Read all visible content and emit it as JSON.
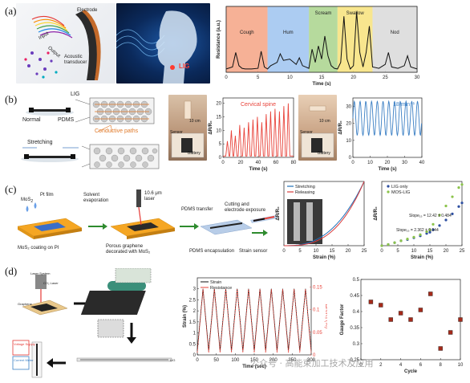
{
  "panels": {
    "a": {
      "label": "(a)",
      "device_labels": {
        "electrode": "Electrode",
        "input": "Input",
        "output": "Output",
        "transducer": "Acoustic transducer"
      },
      "lig_label": "LIG"
    },
    "b": {
      "label": "(b)",
      "labels": {
        "lig": "LIG",
        "normal": "Normal",
        "pdms": "PDMS",
        "conductive_paths": "Conductive paths",
        "stretching": "Stretching"
      },
      "photo1": {
        "scale": "10 cm",
        "sensor": "Sensor",
        "battery": "Battery"
      },
      "photo2": {
        "scale": "10 cm",
        "sensor": "Sensor",
        "battery": "Battery"
      }
    },
    "c": {
      "label": "(c)",
      "steps": {
        "mos2": "MoS",
        "pt_film": "Pt film",
        "solvent": "Solvent evaporation",
        "laser": "10.6 μm laser",
        "pdms_transfer": "PDMS transfer",
        "cutting": "Cutting and electrode exposure",
        "cap1": "MoS₂ coating on PI",
        "cap2": "Porous graphene decorated with MoS₂",
        "cap3": "PDMS encapsulation",
        "cap4": "Strain sensor"
      }
    },
    "d": {
      "label": "(d)",
      "labels": {
        "laser_system": "Laser System",
        "co2_laser": "CO₂ Laser",
        "graphene": "Graphene",
        "voltage_supply": "Voltage Supply",
        "current_meter": "Current Meter",
        "lig": "LIG"
      }
    }
  },
  "watermark": "公众号 · 高能束加工技术及应用",
  "chart_data": [
    {
      "id": "a-resistance",
      "type": "line",
      "ylabel": "Resistance (a.u.)",
      "xlabel": "Time (s)",
      "xlim": [
        0,
        30
      ],
      "xticks": [
        0,
        5,
        10,
        15,
        20,
        25,
        30
      ],
      "regions": [
        {
          "name": "Cough",
          "from": 0,
          "to": 6.5,
          "color": "#f4a384"
        },
        {
          "name": "Hum",
          "from": 6.5,
          "to": 13,
          "color": "#9ec3f0"
        },
        {
          "name": "Scream",
          "from": 13,
          "to": 17.5,
          "color": "#a9d38c"
        },
        {
          "name": "Swallow",
          "from": 17.5,
          "to": 23,
          "color": "#f7e27a"
        },
        {
          "name": "Nod",
          "from": 23,
          "to": 30,
          "color": "#d9d9d9"
        }
      ],
      "series": [
        {
          "values_x": [
            0,
            1,
            1.5,
            2,
            2.5,
            3,
            4,
            5,
            5.5,
            6,
            6.5,
            7,
            8,
            8.5,
            9,
            10,
            11,
            11.5,
            12,
            12.5,
            13,
            13.5,
            14,
            14.5,
            15,
            15.5,
            16,
            16.5,
            17,
            17.5,
            18,
            18.5,
            19,
            19.5,
            20,
            20.5,
            21,
            21.5,
            22,
            22.5,
            23,
            24,
            25,
            25.5,
            26,
            27,
            28,
            28.5,
            29,
            30
          ],
          "values_y": [
            0.05,
            0.08,
            0.3,
            0.1,
            0.06,
            0.05,
            0.05,
            0.06,
            0.32,
            0.08,
            0.05,
            0.1,
            0.15,
            0.28,
            0.18,
            0.2,
            0.12,
            0.22,
            0.1,
            0.08,
            0.06,
            0.35,
            0.15,
            0.4,
            0.2,
            0.55,
            0.25,
            0.1,
            0.06,
            0.05,
            0.15,
            0.85,
            0.2,
            0.05,
            0.1,
            0.92,
            0.3,
            0.08,
            0.3,
            0.7,
            0.08,
            0.06,
            0.12,
            0.3,
            0.08,
            0.06,
            0.1,
            0.25,
            0.08,
            0.05
          ]
        }
      ]
    },
    {
      "id": "b-cervical",
      "type": "line",
      "title": "Cervical spine",
      "ylabel": "ΔR/R₀",
      "xlabel": "Time (s)",
      "xlim": [
        0,
        80
      ],
      "ylim": [
        0,
        22
      ],
      "xticks": [
        0,
        20,
        40,
        60,
        80
      ],
      "yticks": [
        0,
        5,
        10,
        15,
        20
      ],
      "color": "#e8433a",
      "peaks_x": [
        5,
        9.5,
        14,
        19,
        24,
        29,
        34,
        39,
        44,
        49,
        54,
        59,
        64,
        69,
        74
      ],
      "peaks_y": [
        6,
        10,
        8,
        12,
        11,
        13,
        14,
        15,
        13,
        16,
        17,
        18,
        17,
        19,
        20
      ]
    },
    {
      "id": "b-breathing",
      "type": "line",
      "title": "18 min⁻¹",
      "ylabel": "ΔR/R₀",
      "xlabel": "Time (s)",
      "xlim": [
        0,
        40
      ],
      "ylim": [
        0,
        35
      ],
      "xticks": [
        0,
        10,
        20,
        30,
        40
      ],
      "yticks": [
        0,
        10,
        20,
        30
      ],
      "color": "#3b7fc4",
      "period": 3.33,
      "amplitude": [
        13,
        33
      ]
    },
    {
      "id": "c-stretching",
      "type": "line",
      "ylabel": "ΔR/R₀",
      "xlabel": "Strain (%)",
      "xlim": [
        0,
        25
      ],
      "xticks": [
        0,
        5,
        10,
        15,
        20,
        25
      ],
      "series": [
        {
          "name": "Stretching",
          "color": "#1e6fb8"
        },
        {
          "name": "Releasing",
          "color": "#d83b3b"
        }
      ]
    },
    {
      "id": "c-gauge",
      "type": "scatter",
      "ylabel": "ΔR/R₀",
      "xlabel": "Strain (%)",
      "xlim": [
        0,
        25
      ],
      "xticks": [
        0,
        5,
        10,
        15,
        20,
        25
      ],
      "series": [
        {
          "name": "LIG only",
          "color": "#2d4fa1",
          "x": [
            0,
            2,
            4,
            6,
            8,
            10,
            12,
            14,
            15,
            16,
            18,
            20,
            22,
            24,
            25
          ],
          "y": [
            0,
            0.02,
            0.05,
            0.08,
            0.1,
            0.13,
            0.16,
            0.2,
            0.22,
            0.26,
            0.33,
            0.42,
            0.52,
            0.64,
            0.7
          ]
        },
        {
          "name": "MOS-LIG",
          "color": "#8bc34a",
          "x": [
            0,
            2,
            4,
            6,
            8,
            10,
            12,
            14,
            15,
            16,
            18,
            20,
            22,
            24,
            25
          ],
          "y": [
            0,
            0.02,
            0.05,
            0.08,
            0.11,
            0.14,
            0.18,
            0.23,
            0.26,
            0.35,
            0.5,
            0.65,
            0.8,
            0.95,
            1.0
          ]
        }
      ],
      "annotations": [
        "Slope₁₅ = 12.42 ± 0.484",
        "Slope₁₅ = 2.362 ± 0.044"
      ]
    },
    {
      "id": "d-strain-resistance",
      "type": "line",
      "xlabel": "Time (sec)",
      "ylabel": "Strain (%)",
      "ylabel_right": "ΔR/R₀ (%)",
      "xlim": [
        0,
        300
      ],
      "ylim": [
        0,
        3.5
      ],
      "ylim_right": [
        0,
        0.17
      ],
      "xticks": [
        0,
        50,
        100,
        150,
        200,
        250,
        300
      ],
      "yticks": [
        0,
        0.5,
        1,
        1.5,
        2,
        2.5,
        3
      ],
      "yticks_right": [
        0,
        0.05,
        0.1,
        0.15
      ],
      "series": [
        {
          "name": "Strain",
          "color": "#111111"
        },
        {
          "name": "Resistance",
          "color": "#e8433a"
        }
      ],
      "cycles": 10
    },
    {
      "id": "d-gauge-factor",
      "type": "scatter",
      "xlabel": "Cycle",
      "ylabel": "Gauge Factor",
      "xlim": [
        0,
        10
      ],
      "ylim": [
        0.25,
        0.5
      ],
      "xticks": [
        0,
        2,
        4,
        6,
        8,
        10
      ],
      "yticks": [
        0.25,
        0.3,
        0.35,
        0.4,
        0.45,
        0.5
      ],
      "color": "#a52a1a",
      "x": [
        1,
        2,
        3,
        4,
        5,
        6,
        7,
        8,
        9,
        10
      ],
      "y": [
        0.43,
        0.42,
        0.375,
        0.395,
        0.375,
        0.405,
        0.455,
        0.285,
        0.335,
        0.375
      ]
    }
  ]
}
